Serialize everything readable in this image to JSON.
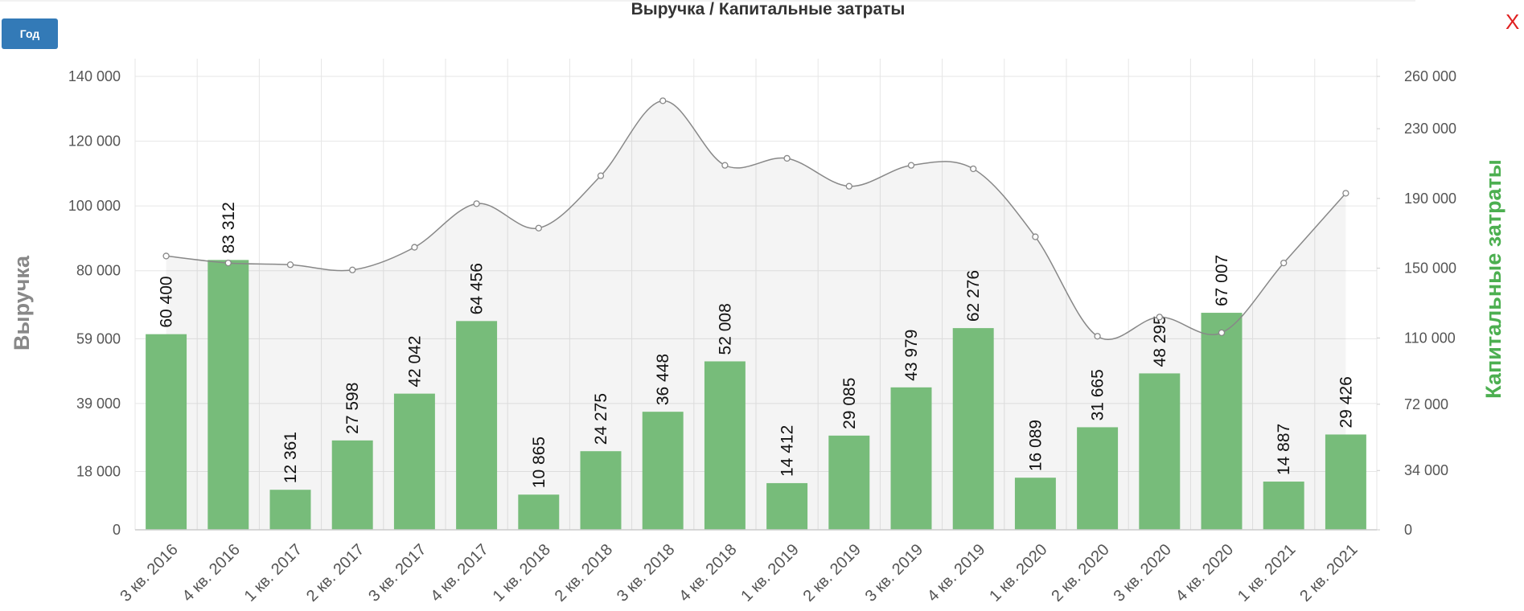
{
  "controls": {
    "period_button": "Год",
    "close": "X"
  },
  "chart_data": {
    "type": "bar",
    "title": "Выручка / Капитальные затраты",
    "ylabel": "Выручка",
    "y2label": "Капитальные затраты",
    "categories": [
      "3 кв. 2016",
      "4 кв. 2016",
      "1 кв. 2017",
      "2 кв. 2017",
      "3 кв. 2017",
      "4 кв. 2017",
      "1 кв. 2018",
      "2 кв. 2018",
      "3 кв. 2018",
      "4 кв. 2018",
      "1 кв. 2019",
      "2 кв. 2019",
      "3 кв. 2019",
      "4 кв. 2019",
      "1 кв. 2020",
      "2 кв. 2020",
      "3 кв. 2020",
      "4 кв. 2020",
      "1 кв. 2021",
      "2 кв. 2021"
    ],
    "series": [
      {
        "type": "bar",
        "color": "#77bc7a",
        "values": [
          60400,
          83312,
          12361,
          27598,
          42042,
          64456,
          10865,
          24275,
          36448,
          52008,
          14412,
          29085,
          43979,
          62276,
          16089,
          31665,
          48295,
          67007,
          14887,
          29426
        ],
        "value_labels": [
          "60 400",
          "83 312",
          "12 361",
          "27 598",
          "42 042",
          "64 456",
          "10 865",
          "24 275",
          "36 448",
          "52 008",
          "14 412",
          "29 085",
          "43 979",
          "62 276",
          "16 089",
          "31 665",
          "48 295",
          "67 007",
          "14 887",
          "29 426"
        ]
      },
      {
        "type": "line",
        "axis": "y2",
        "color": "#888888",
        "values": [
          157000,
          153000,
          152000,
          149000,
          162000,
          187000,
          173000,
          203000,
          246000,
          209000,
          213000,
          197000,
          209000,
          207000,
          168000,
          111000,
          122000,
          113000,
          153000,
          193000
        ]
      }
    ],
    "ylim": [
      0,
      140000
    ],
    "yticks": [
      0,
      {
        "value": 18000,
        "label": "18 000"
      },
      {
        "value": 39000,
        "label": "39 000"
      },
      {
        "value": 59000,
        "label": "59 000"
      },
      {
        "value": 80000,
        "label": "80 000"
      },
      {
        "value": 100000,
        "label": "100 000"
      },
      {
        "value": 120000,
        "label": "120 000"
      },
      {
        "value": 140000,
        "label": "140 000"
      }
    ],
    "y2lim": [
      0,
      260000
    ],
    "y2ticks": [
      0,
      {
        "value": 34000,
        "label": "34 000"
      },
      {
        "value": 72000,
        "label": "72 000"
      },
      {
        "value": 110000,
        "label": "110 000"
      },
      {
        "value": 150000,
        "label": "150 000"
      },
      {
        "value": 190000,
        "label": "190 000"
      },
      {
        "value": 230000,
        "label": "230 000"
      },
      {
        "value": 260000,
        "label": "260 000"
      }
    ],
    "grid": true
  }
}
